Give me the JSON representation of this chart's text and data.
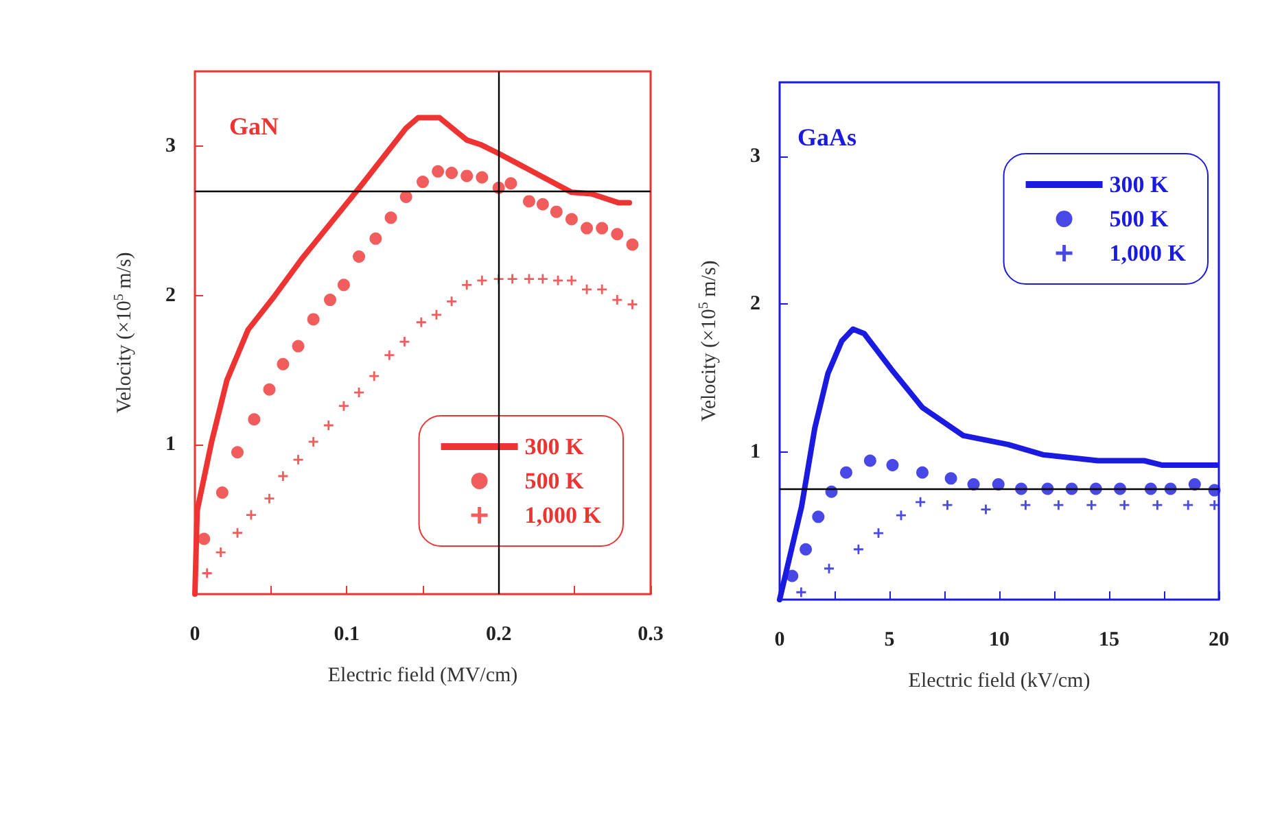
{
  "chart_data": [
    {
      "type": "line",
      "title": "GaN",
      "xlabel": "Electric field (MV/cm)",
      "ylabel": "Velocity (×10$^{5}$ m/s)",
      "xlim": [
        0,
        0.3
      ],
      "ylim": [
        0,
        3.5
      ],
      "xticks": [
        0,
        {
          "value": 0.05,
          "label": null
        },
        0.1,
        {
          "value": 0.15,
          "label": null
        },
        0.2,
        {
          "value": 0.25,
          "label": null
        },
        0.3
      ],
      "yticks": [
        1,
        2,
        3
      ],
      "grid": false,
      "legend": "bottom right",
      "ref_lines": [
        {
          "axis": "y",
          "value": 2.7,
          "color": "#000000"
        },
        {
          "axis": "x",
          "value": 0.2,
          "color": "#000000"
        }
      ],
      "series": [
        {
          "name": "300 K",
          "type": "line",
          "marker": "none",
          "color": "#ee3333",
          "x": [
            0,
            0.0015,
            0.011,
            0.021,
            0.035,
            0.052,
            0.07,
            0.109,
            0.139,
            0.147,
            0.161,
            0.179,
            0.188,
            0.2,
            0.248,
            0.261,
            0.279,
            0.286
          ],
          "values": [
            0,
            0.56,
            1.02,
            1.43,
            1.77,
            1.99,
            2.24,
            2.73,
            3.12,
            3.19,
            3.19,
            3.04,
            3.01,
            2.95,
            2.69,
            2.68,
            2.62,
            2.62
          ]
        },
        {
          "name": "500 K",
          "type": "scatter",
          "marker": "circle",
          "color": "#ee3333",
          "x": [
            0.006,
            0.018,
            0.028,
            0.039,
            0.049,
            0.058,
            0.068,
            0.078,
            0.089,
            0.098,
            0.108,
            0.119,
            0.129,
            0.139,
            0.15,
            0.16,
            0.169,
            0.179,
            0.189,
            0.2,
            0.208,
            0.22,
            0.229,
            0.238,
            0.248,
            0.258,
            0.268,
            0.278,
            0.288
          ],
          "values": [
            0.37,
            0.68,
            0.95,
            1.17,
            1.37,
            1.54,
            1.66,
            1.84,
            1.97,
            2.07,
            2.26,
            2.38,
            2.52,
            2.66,
            2.76,
            2.83,
            2.82,
            2.8,
            2.79,
            2.72,
            2.75,
            2.63,
            2.61,
            2.56,
            2.51,
            2.45,
            2.45,
            2.41,
            2.34
          ]
        },
        {
          "name": "1,000 K",
          "type": "scatter",
          "marker": "cross",
          "color": "#ee3333",
          "x": [
            0.008,
            0.017,
            0.028,
            0.037,
            0.049,
            0.058,
            0.068,
            0.078,
            0.088,
            0.098,
            0.108,
            0.118,
            0.128,
            0.138,
            0.149,
            0.159,
            0.169,
            0.179,
            0.189,
            0.2,
            0.209,
            0.22,
            0.229,
            0.239,
            0.248,
            0.258,
            0.268,
            0.278,
            0.288
          ],
          "values": [
            0.14,
            0.28,
            0.41,
            0.53,
            0.64,
            0.79,
            0.9,
            1.02,
            1.13,
            1.26,
            1.35,
            1.46,
            1.6,
            1.69,
            1.82,
            1.87,
            1.96,
            2.07,
            2.1,
            2.11,
            2.11,
            2.11,
            2.11,
            2.1,
            2.1,
            2.04,
            2.04,
            1.97,
            1.94
          ]
        }
      ]
    },
    {
      "type": "line",
      "title": "GaAs",
      "xlabel": "Electric field (kV/cm)",
      "ylabel": "Velocity (×10$^{5}$ m/s)",
      "xlim": [
        0,
        20
      ],
      "ylim": [
        0,
        3.5
      ],
      "xticks": [
        0,
        {
          "value": 2.5,
          "label": null
        },
        5,
        {
          "value": 7.5,
          "label": null
        },
        10,
        {
          "value": 12.5,
          "label": null
        },
        15,
        {
          "value": 17.5,
          "label": null
        },
        20
      ],
      "yticks": [
        1,
        2,
        3
      ],
      "grid": false,
      "legend": "top right",
      "ref_lines": [
        {
          "axis": "y",
          "value": 0.75,
          "color": "#000000"
        }
      ],
      "series": [
        {
          "name": "300 K",
          "type": "line",
          "marker": "none",
          "color": "#1a1ae0",
          "x": [
            0,
            1,
            1.6,
            2.2,
            2.83,
            3.34,
            3.85,
            5.08,
            6.5,
            8.36,
            10.4,
            12,
            14.5,
            16.6,
            17.4,
            19.9
          ],
          "values": [
            0,
            0.63,
            1.16,
            1.53,
            1.75,
            1.83,
            1.8,
            1.56,
            1.3,
            1.11,
            1.05,
            0.98,
            0.94,
            0.94,
            0.91,
            0.91
          ]
        },
        {
          "name": "500 K",
          "type": "scatter",
          "marker": "circle",
          "color": "#1a1ae0",
          "x": [
            0.57,
            1.19,
            1.76,
            2.36,
            3.03,
            4.12,
            5.14,
            6.5,
            7.8,
            8.83,
            9.96,
            11,
            12.2,
            13.3,
            14.4,
            15.5,
            16.9,
            17.8,
            18.9,
            19.8
          ],
          "values": [
            0.16,
            0.34,
            0.56,
            0.73,
            0.86,
            0.94,
            0.91,
            0.86,
            0.82,
            0.78,
            0.78,
            0.75,
            0.75,
            0.75,
            0.75,
            0.75,
            0.75,
            0.75,
            0.78,
            0.74
          ]
        },
        {
          "name": "1,000 K",
          "type": "scatter",
          "marker": "cross",
          "color": "#1a1ae0",
          "x": [
            0.98,
            2.25,
            3.59,
            4.5,
            5.53,
            6.41,
            7.64,
            9.39,
            11.2,
            12.7,
            14.2,
            15.7,
            17.2,
            18.6,
            19.8
          ],
          "values": [
            0.05,
            0.21,
            0.34,
            0.45,
            0.57,
            0.66,
            0.64,
            0.61,
            0.64,
            0.64,
            0.64,
            0.64,
            0.64,
            0.64,
            0.64
          ]
        }
      ]
    }
  ]
}
